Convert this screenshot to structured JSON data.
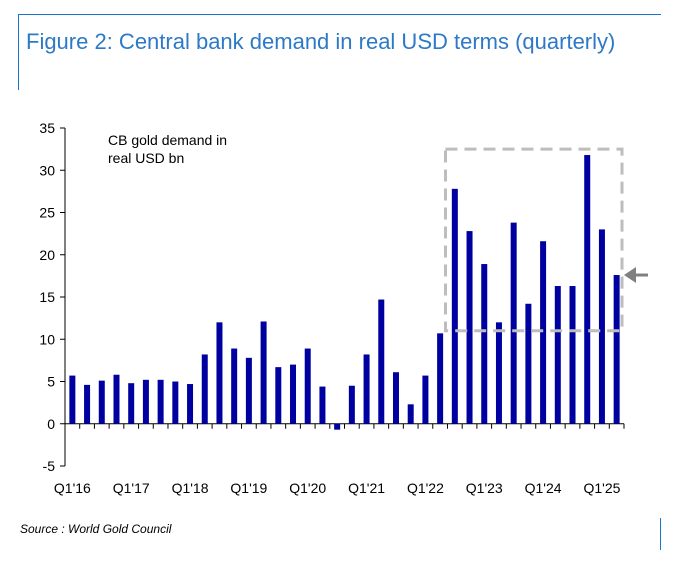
{
  "title": "Figure 2: Central bank demand in real USD terms (quarterly)",
  "source": "Source : World Gold Council",
  "colors": {
    "bar": "#0000a0",
    "title": "#2d79c7",
    "highlight_box": "#bdbdbd",
    "arrow": "#808080"
  },
  "chart_data": {
    "type": "bar",
    "annotation": [
      "CB gold demand in",
      "real USD bn"
    ],
    "ylim": [
      -5,
      35
    ],
    "yticks": [
      -5,
      0,
      5,
      10,
      15,
      20,
      25,
      30,
      35
    ],
    "xtick_labels": [
      "Q1'16",
      "Q1'17",
      "Q1'18",
      "Q1'19",
      "Q1'20",
      "Q1'21",
      "Q1'22",
      "Q1'23",
      "Q1'24",
      "Q1'25"
    ],
    "categories": [
      "Q1'16",
      "Q2'16",
      "Q3'16",
      "Q4'16",
      "Q1'17",
      "Q2'17",
      "Q3'17",
      "Q4'17",
      "Q1'18",
      "Q2'18",
      "Q3'18",
      "Q4'18",
      "Q1'19",
      "Q2'19",
      "Q3'19",
      "Q4'19",
      "Q1'20",
      "Q2'20",
      "Q3'20",
      "Q4'20",
      "Q1'21",
      "Q2'21",
      "Q3'21",
      "Q4'21",
      "Q1'22",
      "Q2'22",
      "Q3'22",
      "Q4'22",
      "Q1'23",
      "Q2'23",
      "Q3'23",
      "Q4'23",
      "Q1'24",
      "Q2'24",
      "Q3'24",
      "Q4'24",
      "Q1'25",
      "Q2'25"
    ],
    "values": [
      5.7,
      4.6,
      5.1,
      5.8,
      4.8,
      5.2,
      5.2,
      5.0,
      4.7,
      8.2,
      12.0,
      8.9,
      7.8,
      12.1,
      6.7,
      7.0,
      8.9,
      4.4,
      -0.7,
      4.5,
      8.2,
      14.7,
      6.1,
      2.3,
      5.7,
      10.7,
      27.8,
      22.8,
      18.9,
      12.0,
      23.8,
      14.2,
      21.6,
      16.3,
      16.3,
      31.8,
      23.0,
      17.6
    ],
    "highlight": {
      "from": "Q3'22",
      "to": "Q2'25",
      "ymin": 11,
      "ymax": 32.5
    },
    "grid": false,
    "legend": "none"
  }
}
